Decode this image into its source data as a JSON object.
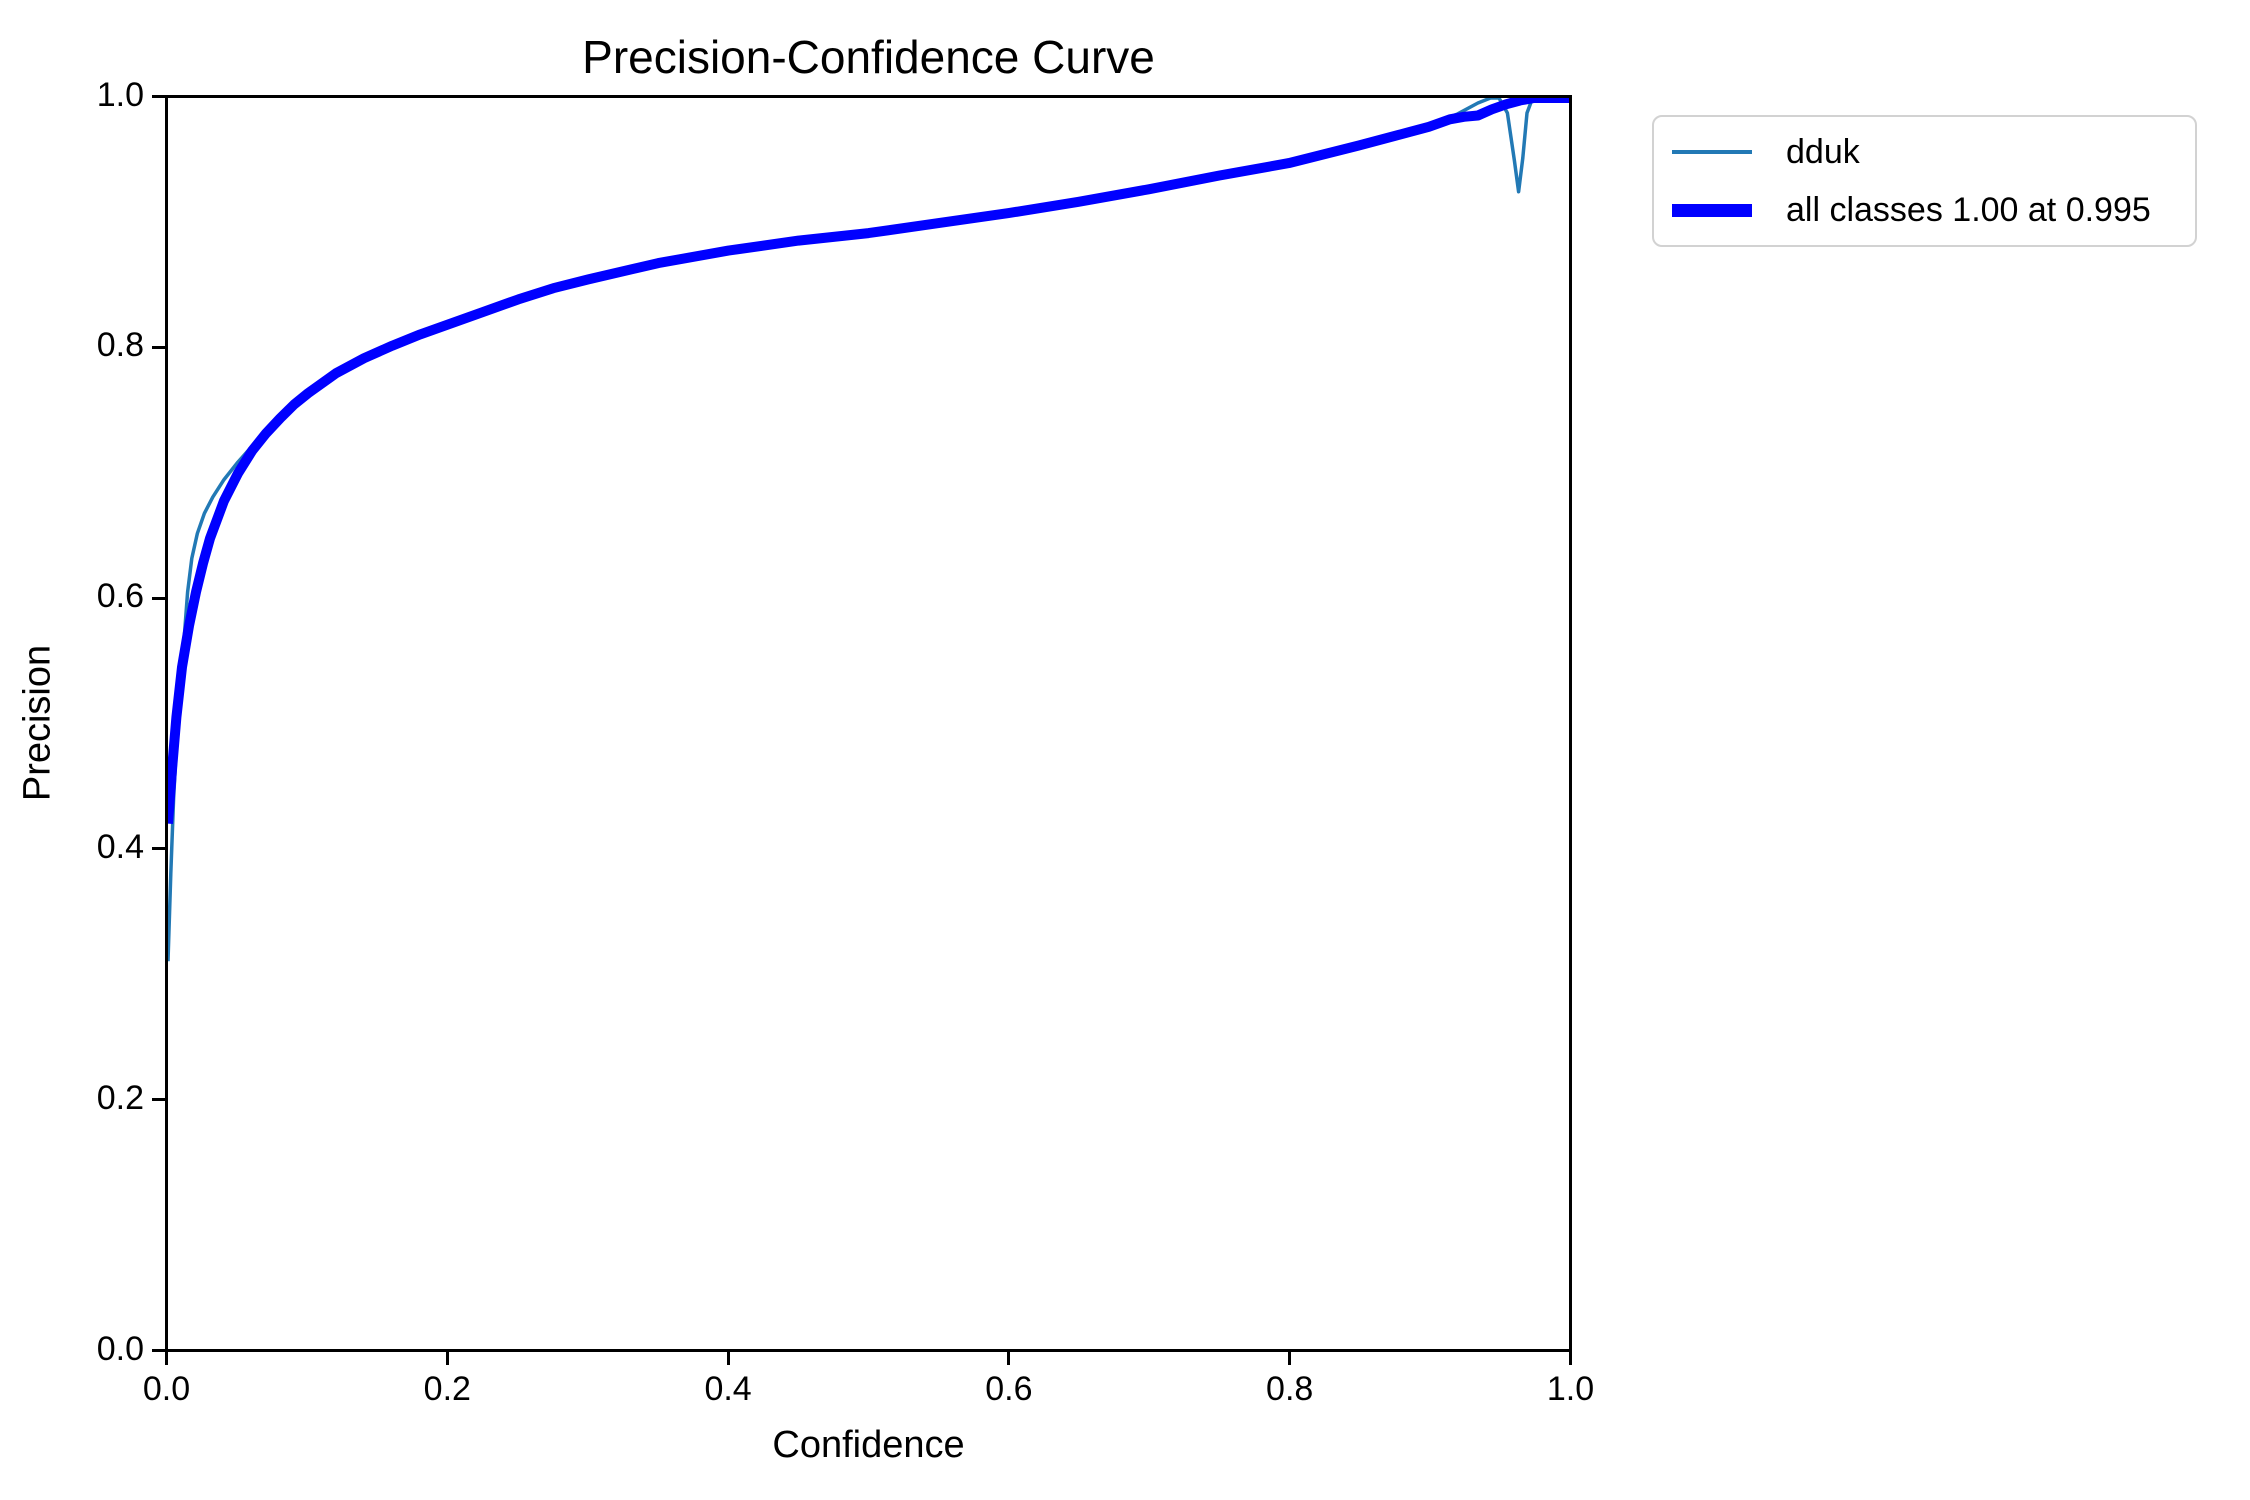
{
  "figure": {
    "background_color": "#ffffff",
    "text_color": "#000000",
    "spine_color": "#000000"
  },
  "chart_data": {
    "type": "line",
    "title": "Precision-Confidence Curve",
    "xlabel": "Confidence",
    "ylabel": "Precision",
    "xlim": [
      0.0,
      1.0
    ],
    "ylim": [
      0.0,
      1.0
    ],
    "xticks": [
      "0.0",
      "0.2",
      "0.4",
      "0.6",
      "0.8",
      "1.0"
    ],
    "yticks": [
      "0.0",
      "0.2",
      "0.4",
      "0.6",
      "0.8",
      "1.0"
    ],
    "grid": false,
    "legend": {
      "position": "outside-upper-right",
      "entries": [
        {
          "label": "dduk",
          "color": "#2279b5",
          "swatch_height": 4
        },
        {
          "label": "all classes 1.00 at 0.995",
          "color": "#0000ff",
          "swatch_height": 13
        }
      ]
    },
    "series": [
      {
        "name": "dduk",
        "color": "#2279b5",
        "stroke_width": 3.5,
        "points": [
          [
            0.0,
            0.31
          ],
          [
            0.002,
            0.38
          ],
          [
            0.004,
            0.44
          ],
          [
            0.006,
            0.482
          ],
          [
            0.008,
            0.515
          ],
          [
            0.011,
            0.56
          ],
          [
            0.014,
            0.605
          ],
          [
            0.017,
            0.632
          ],
          [
            0.021,
            0.652
          ],
          [
            0.026,
            0.668
          ],
          [
            0.032,
            0.681
          ],
          [
            0.04,
            0.695
          ],
          [
            0.05,
            0.709
          ],
          [
            0.065,
            0.728
          ],
          [
            0.08,
            0.745
          ],
          [
            0.1,
            0.767
          ],
          [
            0.12,
            0.782
          ],
          [
            0.15,
            0.799
          ],
          [
            0.18,
            0.811
          ],
          [
            0.2,
            0.819
          ],
          [
            0.25,
            0.84
          ],
          [
            0.3,
            0.856
          ],
          [
            0.35,
            0.869
          ],
          [
            0.4,
            0.879
          ],
          [
            0.45,
            0.888
          ],
          [
            0.5,
            0.894
          ],
          [
            0.55,
            0.901
          ],
          [
            0.6,
            0.909
          ],
          [
            0.65,
            0.918
          ],
          [
            0.7,
            0.928
          ],
          [
            0.75,
            0.939
          ],
          [
            0.8,
            0.95
          ],
          [
            0.85,
            0.963
          ],
          [
            0.88,
            0.972
          ],
          [
            0.9,
            0.979
          ],
          [
            0.92,
            0.987
          ],
          [
            0.935,
            0.996
          ],
          [
            0.944,
            1.0
          ],
          [
            0.95,
            1.0
          ],
          [
            0.956,
            0.988
          ],
          [
            0.961,
            0.95
          ],
          [
            0.964,
            0.925
          ],
          [
            0.967,
            0.952
          ],
          [
            0.97,
            0.988
          ],
          [
            0.974,
            1.0
          ],
          [
            1.0,
            1.0
          ]
        ]
      },
      {
        "name": "all classes 1.00 at 0.995",
        "color": "#0000ff",
        "stroke_width": 10,
        "points": [
          [
            0.0,
            0.42
          ],
          [
            0.003,
            0.465
          ],
          [
            0.006,
            0.505
          ],
          [
            0.01,
            0.545
          ],
          [
            0.015,
            0.578
          ],
          [
            0.02,
            0.605
          ],
          [
            0.025,
            0.628
          ],
          [
            0.03,
            0.648
          ],
          [
            0.04,
            0.678
          ],
          [
            0.05,
            0.7
          ],
          [
            0.06,
            0.718
          ],
          [
            0.07,
            0.732
          ],
          [
            0.08,
            0.744
          ],
          [
            0.09,
            0.755
          ],
          [
            0.1,
            0.764
          ],
          [
            0.12,
            0.78
          ],
          [
            0.14,
            0.792
          ],
          [
            0.16,
            0.802
          ],
          [
            0.18,
            0.811
          ],
          [
            0.2,
            0.819
          ],
          [
            0.225,
            0.829
          ],
          [
            0.25,
            0.839
          ],
          [
            0.275,
            0.848
          ],
          [
            0.3,
            0.855
          ],
          [
            0.35,
            0.868
          ],
          [
            0.4,
            0.878
          ],
          [
            0.45,
            0.886
          ],
          [
            0.5,
            0.892
          ],
          [
            0.55,
            0.9
          ],
          [
            0.6,
            0.908
          ],
          [
            0.65,
            0.917
          ],
          [
            0.7,
            0.927
          ],
          [
            0.75,
            0.938
          ],
          [
            0.8,
            0.948
          ],
          [
            0.85,
            0.962
          ],
          [
            0.88,
            0.971
          ],
          [
            0.9,
            0.977
          ],
          [
            0.915,
            0.983
          ],
          [
            0.925,
            0.985
          ],
          [
            0.935,
            0.986
          ],
          [
            0.945,
            0.991
          ],
          [
            0.955,
            0.995
          ],
          [
            0.965,
            0.998
          ],
          [
            0.975,
            1.0
          ],
          [
            1.0,
            1.0
          ]
        ]
      }
    ]
  }
}
